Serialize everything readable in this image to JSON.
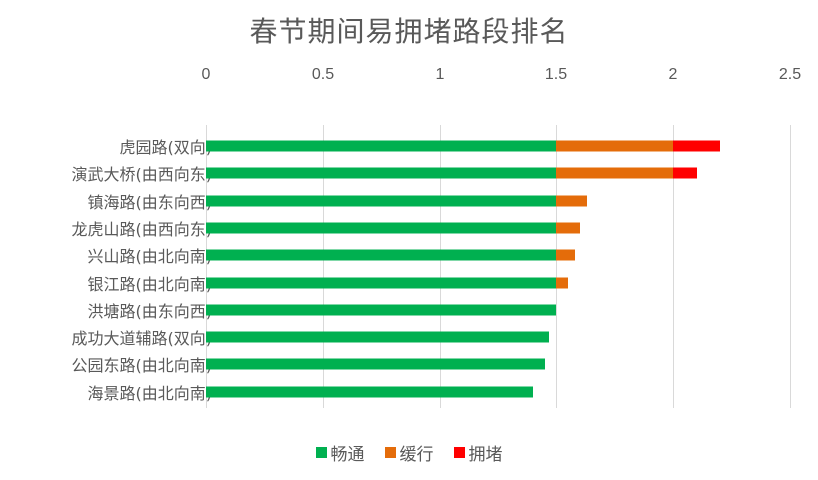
{
  "chart_data": {
    "type": "bar",
    "orientation": "horizontal",
    "stacked": true,
    "title": "春节期间易拥堵路段排名",
    "xlabel": "",
    "ylabel": "",
    "xlim": [
      0,
      2.5
    ],
    "x_ticks": [
      "0",
      "0.5",
      "1",
      "1.5",
      "2",
      "2.5"
    ],
    "x_axis_position": "top",
    "grid": true,
    "legend_position": "bottom",
    "categories": [
      "虎园路(双向)",
      "演武大桥(由西向东)",
      "镇海路(由东向西)",
      "龙虎山路(由西向东)",
      "兴山路(由北向南)",
      "银江路(由北向南)",
      "洪塘路(由东向西)",
      "成功大道辅路(双向)",
      "公园东路(由北向南)",
      "海景路(由北向南)"
    ],
    "series": [
      {
        "name": "畅通",
        "color": "#00b050",
        "values": [
          1.5,
          1.5,
          1.5,
          1.5,
          1.5,
          1.5,
          1.5,
          1.47,
          1.45,
          1.4
        ]
      },
      {
        "name": "缓行",
        "color": "#e46c0a",
        "values": [
          0.5,
          0.5,
          0.13,
          0.1,
          0.08,
          0.05,
          0,
          0,
          0,
          0
        ]
      },
      {
        "name": "拥堵",
        "color": "#ff0000",
        "values": [
          0.2,
          0.1,
          0,
          0,
          0,
          0,
          0,
          0,
          0,
          0
        ]
      }
    ]
  }
}
